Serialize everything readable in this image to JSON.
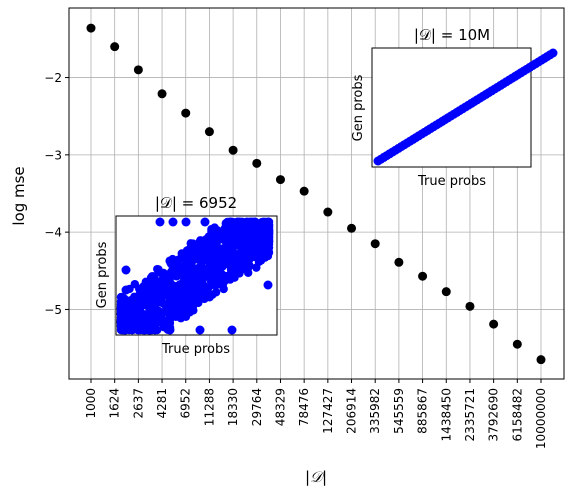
{
  "chart_data": [
    {
      "type": "scatter",
      "title": "",
      "xlabel": "|𝒟|",
      "ylabel": "log mse",
      "x_tick_labels": [
        "1000",
        "1624",
        "2637",
        "4281",
        "6952",
        "11288",
        "18330",
        "29764",
        "48329",
        "78476",
        "127427",
        "206914",
        "335982",
        "545559",
        "885867",
        "1438450",
        "2335721",
        "3792690",
        "6158482",
        "10000000"
      ],
      "x": [
        1000,
        1624,
        2637,
        4281,
        6952,
        11288,
        18330,
        29764,
        48329,
        78476,
        127427,
        206914,
        335982,
        545559,
        885867,
        1438450,
        2335721,
        3792690,
        6158482,
        10000000
      ],
      "y": [
        -1.36,
        -1.6,
        -1.9,
        -2.21,
        -2.46,
        -2.7,
        -2.94,
        -3.11,
        -3.32,
        -3.47,
        -3.74,
        -3.95,
        -4.15,
        -4.39,
        -4.57,
        -4.77,
        -4.96,
        -5.19,
        -5.45,
        -5.65
      ],
      "x_scale": "log",
      "ylim": [
        -5.9,
        -1.1
      ],
      "y_ticks": [
        -5,
        -4,
        -3,
        -2
      ],
      "y_tick_labels": [
        "−5",
        "−4",
        "−3",
        "−2"
      ],
      "marker_color": "#000000",
      "grid": true
    },
    {
      "type": "scatter",
      "title": "|𝒟| = 10M",
      "xlabel": "True probs",
      "ylabel": "Gen probs",
      "description_of_points": "tight diagonal band",
      "x": [
        0,
        0.05,
        0.1,
        0.15,
        0.2,
        0.25,
        0.3,
        0.35,
        0.4,
        0.45,
        0.5,
        0.55,
        0.6,
        0.65,
        0.7,
        0.75,
        0.8,
        0.85,
        0.9,
        0.95,
        1.0
      ],
      "y": [
        0,
        0.05,
        0.1,
        0.15,
        0.2,
        0.25,
        0.3,
        0.35,
        0.4,
        0.45,
        0.5,
        0.55,
        0.6,
        0.65,
        0.7,
        0.75,
        0.8,
        0.85,
        0.9,
        0.95,
        1.0
      ],
      "marker_color": "#0000ff"
    },
    {
      "type": "scatter",
      "title": "|𝒟| = 6952",
      "xlabel": "True probs",
      "ylabel": "Gen probs",
      "marker_color": "#0000ff"
    }
  ]
}
